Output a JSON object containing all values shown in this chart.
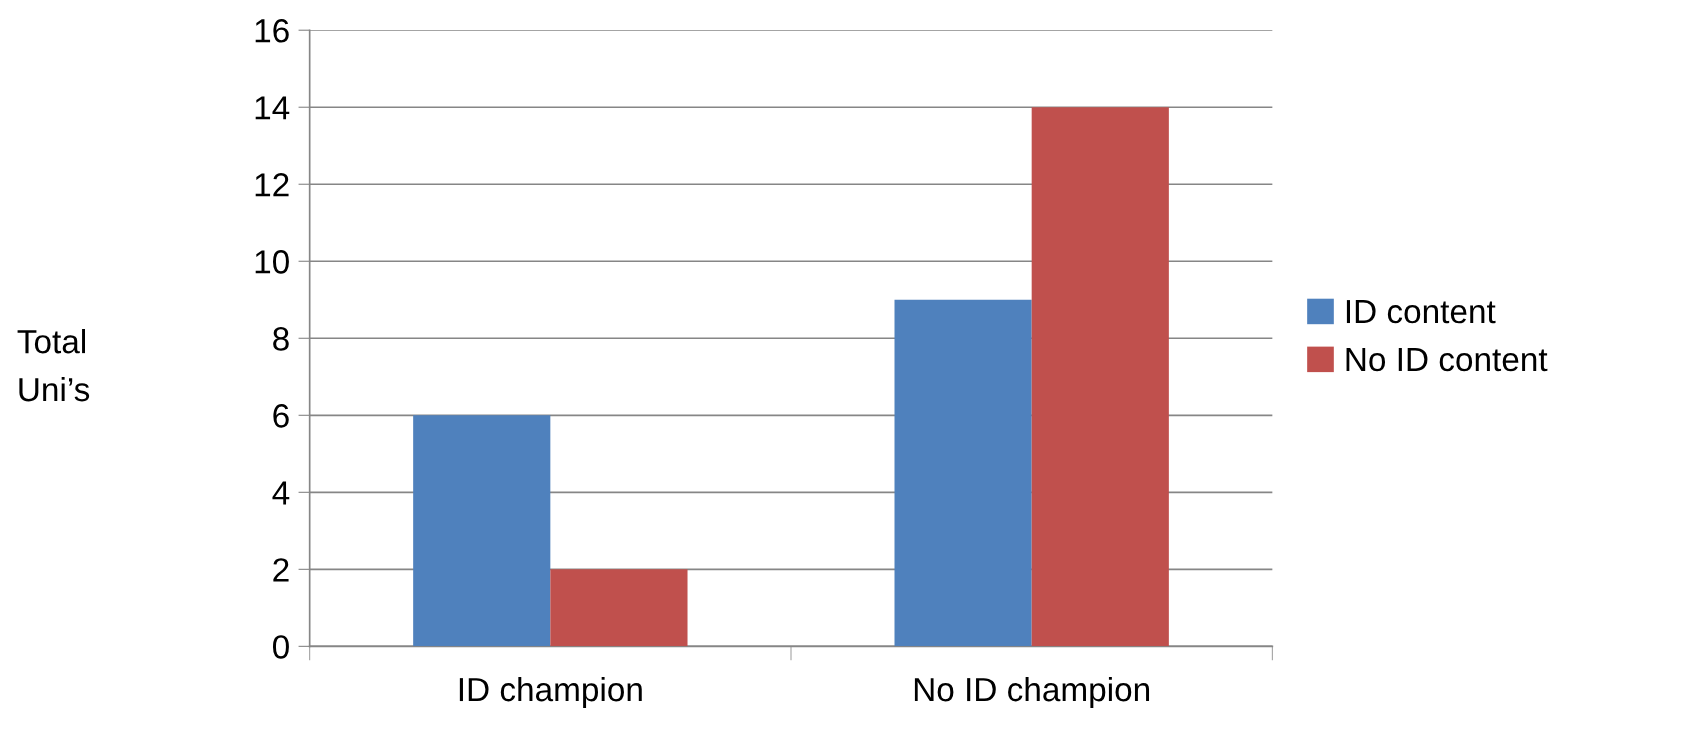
{
  "chart_data": {
    "type": "bar",
    "ylabel": "Total\nUni’s",
    "categories": [
      "ID champion",
      "No ID champion"
    ],
    "series": [
      {
        "name": "ID content",
        "color": "#4f81bd",
        "values": [
          6,
          9
        ]
      },
      {
        "name": "No ID content",
        "color": "#c0504d",
        "values": [
          2,
          14
        ]
      }
    ],
    "ylim": [
      0,
      16
    ],
    "yticks": [
      0,
      2,
      4,
      6,
      8,
      10,
      12,
      14,
      16
    ],
    "grid": "y",
    "legend": "right"
  }
}
